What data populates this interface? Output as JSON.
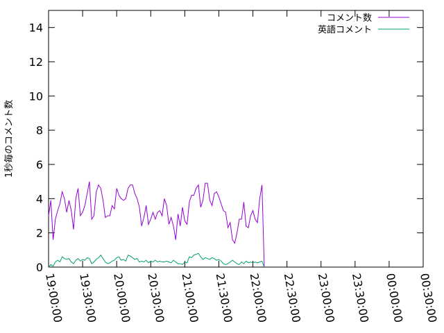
{
  "chart_data": {
    "type": "line",
    "title": "",
    "xlabel": "",
    "ylabel": "1秒毎のコメント数",
    "ylim": [
      0,
      15
    ],
    "yticks": [
      0,
      2,
      4,
      6,
      8,
      10,
      12,
      14
    ],
    "xlim": [
      "19:00:00",
      "00:30:00"
    ],
    "xticks": [
      "19:00:00",
      "19:30:00",
      "20:00:00",
      "20:30:00",
      "21:00:00",
      "21:30:00",
      "22:00:00",
      "22:30:00",
      "23:00:00",
      "23:30:00",
      "00:00:00",
      "00:30:00"
    ],
    "grid": false,
    "legend_position": "top-right",
    "series": [
      {
        "name": "コメント数",
        "color": "#9400d3",
        "points": [
          [
            "19:00:00",
            3.0
          ],
          [
            "19:02:00",
            3.9
          ],
          [
            "19:04:00",
            1.6
          ],
          [
            "19:06:00",
            2.8
          ],
          [
            "19:08:00",
            3.3
          ],
          [
            "19:10:00",
            3.7
          ],
          [
            "19:12:00",
            4.4
          ],
          [
            "19:14:00",
            4.0
          ],
          [
            "19:16:00",
            3.2
          ],
          [
            "19:18:00",
            3.9
          ],
          [
            "19:20:00",
            3.3
          ],
          [
            "19:22:00",
            2.2
          ],
          [
            "19:24:00",
            4.0
          ],
          [
            "19:26:00",
            4.6
          ],
          [
            "19:28:00",
            3.0
          ],
          [
            "19:30:00",
            3.2
          ],
          [
            "19:32:00",
            3.6
          ],
          [
            "19:34:00",
            4.3
          ],
          [
            "19:36:00",
            5.0
          ],
          [
            "19:38:00",
            2.8
          ],
          [
            "19:40:00",
            3.0
          ],
          [
            "19:42:00",
            4.4
          ],
          [
            "19:44:00",
            4.8
          ],
          [
            "19:46:00",
            4.6
          ],
          [
            "19:48:00",
            3.9
          ],
          [
            "19:50:00",
            2.9
          ],
          [
            "19:52:00",
            3.0
          ],
          [
            "19:54:00",
            3.0
          ],
          [
            "19:56:00",
            3.6
          ],
          [
            "19:58:00",
            3.4
          ],
          [
            "20:00:00",
            4.6
          ],
          [
            "20:02:00",
            4.2
          ],
          [
            "20:04:00",
            4.0
          ],
          [
            "20:06:00",
            3.9
          ],
          [
            "20:08:00",
            4.0
          ],
          [
            "20:10:00",
            4.6
          ],
          [
            "20:12:00",
            4.8
          ],
          [
            "20:14:00",
            4.8
          ],
          [
            "20:16:00",
            4.3
          ],
          [
            "20:18:00",
            4.0
          ],
          [
            "20:20:00",
            3.5
          ],
          [
            "20:22:00",
            2.4
          ],
          [
            "20:24:00",
            2.9
          ],
          [
            "20:26:00",
            3.6
          ],
          [
            "20:28:00",
            2.5
          ],
          [
            "20:30:00",
            2.8
          ],
          [
            "20:32:00",
            3.2
          ],
          [
            "20:34:00",
            2.8
          ],
          [
            "20:36:00",
            3.2
          ],
          [
            "20:38:00",
            3.3
          ],
          [
            "20:40:00",
            3.0
          ],
          [
            "20:42:00",
            4.0
          ],
          [
            "20:44:00",
            3.6
          ],
          [
            "20:46:00",
            2.5
          ],
          [
            "20:48:00",
            2.9
          ],
          [
            "20:50:00",
            2.4
          ],
          [
            "20:52:00",
            1.6
          ],
          [
            "20:54:00",
            3.1
          ],
          [
            "20:56:00",
            2.4
          ],
          [
            "20:58:00",
            3.5
          ],
          [
            "21:00:00",
            2.7
          ],
          [
            "21:02:00",
            2.5
          ],
          [
            "21:04:00",
            3.8
          ],
          [
            "21:06:00",
            4.2
          ],
          [
            "21:08:00",
            4.2
          ],
          [
            "21:10:00",
            4.6
          ],
          [
            "21:12:00",
            4.8
          ],
          [
            "21:14:00",
            3.5
          ],
          [
            "21:16:00",
            3.9
          ],
          [
            "21:18:00",
            4.9
          ],
          [
            "21:20:00",
            4.9
          ],
          [
            "21:22:00",
            3.9
          ],
          [
            "21:24:00",
            3.6
          ],
          [
            "21:26:00",
            4.3
          ],
          [
            "21:28:00",
            4.4
          ],
          [
            "21:30:00",
            4.1
          ],
          [
            "21:32:00",
            3.7
          ],
          [
            "21:34:00",
            3.3
          ],
          [
            "21:36:00",
            3.2
          ],
          [
            "21:38:00",
            2.3
          ],
          [
            "21:40:00",
            2.6
          ],
          [
            "21:42:00",
            1.6
          ],
          [
            "21:44:00",
            1.4
          ],
          [
            "21:46:00",
            2.0
          ],
          [
            "21:48:00",
            2.8
          ],
          [
            "21:50:00",
            2.8
          ],
          [
            "21:52:00",
            3.8
          ],
          [
            "21:54:00",
            2.4
          ],
          [
            "21:56:00",
            2.3
          ],
          [
            "21:58:00",
            3.0
          ],
          [
            "22:00:00",
            3.3
          ],
          [
            "22:02:00",
            2.8
          ],
          [
            "22:04:00",
            2.6
          ],
          [
            "22:06:00",
            4.0
          ],
          [
            "22:08:00",
            4.8
          ],
          [
            "22:10:00",
            0.0
          ]
        ]
      },
      {
        "name": "英語コメント",
        "color": "#009e73",
        "points": [
          [
            "19:00:00",
            0.0
          ],
          [
            "19:02:00",
            0.15
          ],
          [
            "19:04:00",
            0.05
          ],
          [
            "19:06:00",
            0.3
          ],
          [
            "19:08:00",
            0.4
          ],
          [
            "19:10:00",
            0.3
          ],
          [
            "19:12:00",
            0.6
          ],
          [
            "19:14:00",
            0.5
          ],
          [
            "19:16:00",
            0.45
          ],
          [
            "19:18:00",
            0.5
          ],
          [
            "19:20:00",
            0.3
          ],
          [
            "19:22:00",
            0.2
          ],
          [
            "19:24:00",
            0.4
          ],
          [
            "19:26:00",
            0.5
          ],
          [
            "19:28:00",
            0.35
          ],
          [
            "19:30:00",
            0.45
          ],
          [
            "19:32:00",
            0.4
          ],
          [
            "19:34:00",
            0.55
          ],
          [
            "19:36:00",
            0.5
          ],
          [
            "19:38:00",
            0.2
          ],
          [
            "19:40:00",
            0.3
          ],
          [
            "19:42:00",
            0.45
          ],
          [
            "19:44:00",
            0.55
          ],
          [
            "19:46:00",
            0.7
          ],
          [
            "19:48:00",
            0.5
          ],
          [
            "19:50:00",
            0.3
          ],
          [
            "19:52:00",
            0.2
          ],
          [
            "19:54:00",
            0.25
          ],
          [
            "19:56:00",
            0.35
          ],
          [
            "19:58:00",
            0.4
          ],
          [
            "20:00:00",
            0.55
          ],
          [
            "20:02:00",
            0.6
          ],
          [
            "20:04:00",
            0.4
          ],
          [
            "20:06:00",
            0.45
          ],
          [
            "20:08:00",
            0.35
          ],
          [
            "20:10:00",
            0.7
          ],
          [
            "20:12:00",
            0.65
          ],
          [
            "20:14:00",
            0.55
          ],
          [
            "20:16:00",
            0.45
          ],
          [
            "20:18:00",
            0.5
          ],
          [
            "20:20:00",
            0.3
          ],
          [
            "20:22:00",
            0.35
          ],
          [
            "20:24:00",
            0.3
          ],
          [
            "20:26:00",
            0.4
          ],
          [
            "20:28:00",
            0.25
          ],
          [
            "20:30:00",
            0.35
          ],
          [
            "20:32:00",
            0.3
          ],
          [
            "20:34:00",
            0.4
          ],
          [
            "20:36:00",
            0.3
          ],
          [
            "20:38:00",
            0.35
          ],
          [
            "20:40:00",
            0.3
          ],
          [
            "20:42:00",
            0.3
          ],
          [
            "20:44:00",
            0.35
          ],
          [
            "20:46:00",
            0.3
          ],
          [
            "20:48:00",
            0.25
          ],
          [
            "20:50:00",
            0.4
          ],
          [
            "20:52:00",
            0.3
          ],
          [
            "20:54:00",
            0.2
          ],
          [
            "20:56:00",
            0.2
          ],
          [
            "20:58:00",
            0.15
          ],
          [
            "21:00:00",
            0.3
          ],
          [
            "21:02:00",
            0.25
          ],
          [
            "21:04:00",
            0.6
          ],
          [
            "21:06:00",
            0.55
          ],
          [
            "21:08:00",
            0.7
          ],
          [
            "21:10:00",
            0.75
          ],
          [
            "21:12:00",
            0.8
          ],
          [
            "21:14:00",
            0.6
          ],
          [
            "21:16:00",
            0.45
          ],
          [
            "21:18:00",
            0.55
          ],
          [
            "21:20:00",
            0.5
          ],
          [
            "21:22:00",
            0.45
          ],
          [
            "21:24:00",
            0.55
          ],
          [
            "21:26:00",
            0.5
          ],
          [
            "21:28:00",
            0.4
          ],
          [
            "21:30:00",
            0.45
          ],
          [
            "21:32:00",
            0.35
          ],
          [
            "21:34:00",
            0.2
          ],
          [
            "21:36:00",
            0.15
          ],
          [
            "21:38:00",
            0.2
          ],
          [
            "21:40:00",
            0.3
          ],
          [
            "21:42:00",
            0.4
          ],
          [
            "21:44:00",
            0.3
          ],
          [
            "21:46:00",
            0.2
          ],
          [
            "21:48:00",
            0.15
          ],
          [
            "21:50:00",
            0.3
          ],
          [
            "21:52:00",
            0.2
          ],
          [
            "21:54:00",
            0.35
          ],
          [
            "21:56:00",
            0.25
          ],
          [
            "21:58:00",
            0.3
          ],
          [
            "22:00:00",
            0.25
          ],
          [
            "22:02:00",
            0.3
          ],
          [
            "22:04:00",
            0.25
          ],
          [
            "22:06:00",
            0.3
          ],
          [
            "22:08:00",
            0.35
          ],
          [
            "22:10:00",
            0.0
          ]
        ]
      }
    ]
  }
}
